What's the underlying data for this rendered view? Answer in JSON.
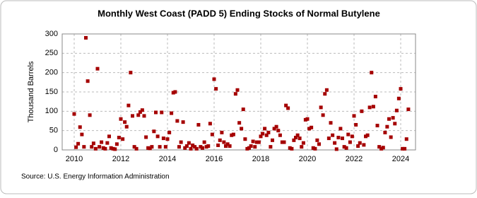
{
  "chart_data": {
    "type": "scatter",
    "title": "Monthly West Coast (PADD 5) Ending Stocks of Normal Butylene",
    "y_label": "Thousand Barrels",
    "source": "Source: U.S. Energy Information Administration",
    "color": "#a50000",
    "grid": true,
    "xlim": [
      2009.485,
      2024.636
    ],
    "xticks": [
      2010,
      2012,
      2014,
      2016,
      2018,
      2020,
      2022,
      2024
    ],
    "ylim": [
      0,
      300
    ],
    "yticks": [
      0,
      50,
      100,
      150,
      200,
      250,
      300
    ],
    "x": [
      2010,
      2010.08,
      2010.17,
      2010.25,
      2010.33,
      2010.42,
      2010.5,
      2010.58,
      2010.67,
      2010.75,
      2010.83,
      2010.92,
      2011,
      2011.08,
      2011.17,
      2011.25,
      2011.33,
      2011.42,
      2011.5,
      2011.58,
      2011.67,
      2011.75,
      2011.83,
      2011.92,
      2012,
      2012.08,
      2012.17,
      2012.25,
      2012.33,
      2012.42,
      2012.5,
      2012.58,
      2012.67,
      2012.75,
      2012.83,
      2012.92,
      2013,
      2013.08,
      2013.17,
      2013.25,
      2013.33,
      2013.42,
      2013.5,
      2013.58,
      2013.67,
      2013.75,
      2013.83,
      2013.92,
      2014,
      2014.08,
      2014.17,
      2014.25,
      2014.33,
      2014.42,
      2014.5,
      2014.58,
      2014.67,
      2014.75,
      2014.83,
      2014.92,
      2015,
      2015.08,
      2015.17,
      2015.25,
      2015.33,
      2015.42,
      2015.5,
      2015.58,
      2015.67,
      2015.75,
      2015.83,
      2015.92,
      2016,
      2016.08,
      2016.17,
      2016.25,
      2016.33,
      2016.42,
      2016.5,
      2016.58,
      2016.67,
      2016.75,
      2016.83,
      2016.92,
      2017,
      2017.08,
      2017.17,
      2017.25,
      2017.33,
      2017.42,
      2017.5,
      2017.58,
      2017.67,
      2017.75,
      2017.83,
      2017.92,
      2018,
      2018.08,
      2018.17,
      2018.25,
      2018.33,
      2018.42,
      2018.5,
      2018.58,
      2018.67,
      2018.75,
      2018.83,
      2018.92,
      2019,
      2019.08,
      2019.17,
      2019.25,
      2019.33,
      2019.42,
      2019.5,
      2019.58,
      2019.67,
      2019.75,
      2019.83,
      2019.92,
      2020,
      2020.08,
      2020.17,
      2020.25,
      2020.33,
      2020.42,
      2020.5,
      2020.58,
      2020.67,
      2020.75,
      2020.83,
      2020.92,
      2021,
      2021.08,
      2021.17,
      2021.25,
      2021.33,
      2021.42,
      2021.5,
      2021.58,
      2021.67,
      2021.75,
      2021.83,
      2021.92,
      2022,
      2022.08,
      2022.17,
      2022.25,
      2022.33,
      2022.42,
      2022.5,
      2022.58,
      2022.67,
      2022.75,
      2022.83,
      2022.92,
      2023,
      2023.08,
      2023.17,
      2023.25,
      2023.33,
      2023.42,
      2023.5,
      2023.58,
      2023.67,
      2023.75,
      2023.83,
      2023.92,
      2024,
      2024.08,
      2024.17,
      2024.25,
      2024.33
    ],
    "values": [
      93,
      7,
      16,
      59,
      40,
      8,
      290,
      178,
      90,
      8,
      17,
      3,
      210,
      8,
      20,
      5,
      3,
      18,
      35,
      5,
      3,
      2,
      15,
      32,
      80,
      28,
      72,
      60,
      115,
      200,
      88,
      8,
      3,
      90,
      98,
      103,
      88,
      33,
      5,
      4,
      8,
      48,
      97,
      35,
      8,
      97,
      30,
      8,
      28,
      45,
      95,
      148,
      150,
      75,
      8,
      20,
      72,
      5,
      10,
      18,
      3,
      12,
      8,
      3,
      65,
      8,
      5,
      20,
      8,
      10,
      68,
      40,
      183,
      158,
      12,
      25,
      45,
      20,
      10,
      15,
      10,
      38,
      40,
      145,
      155,
      70,
      55,
      105,
      28,
      3,
      5,
      10,
      22,
      8,
      20,
      20,
      35,
      42,
      55,
      38,
      45,
      8,
      25,
      55,
      60,
      50,
      38,
      20,
      20,
      115,
      108,
      5,
      3,
      25,
      32,
      38,
      30,
      8,
      18,
      78,
      80,
      55,
      58,
      5,
      3,
      25,
      15,
      110,
      90,
      145,
      155,
      30,
      70,
      38,
      18,
      2,
      32,
      55,
      30,
      8,
      5,
      40,
      20,
      35,
      88,
      65,
      10,
      18,
      100,
      13,
      35,
      38,
      110,
      200,
      112,
      138,
      63,
      8,
      3,
      6,
      45,
      60,
      80,
      33,
      83,
      68,
      102,
      133,
      158,
      3,
      3,
      28,
      105
    ]
  }
}
